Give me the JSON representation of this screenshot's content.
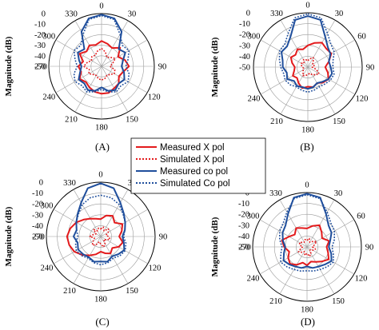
{
  "chart_data": [
    {
      "type": "polar",
      "panel_label": "(A)",
      "ylabel": "Magnitude (dB)",
      "r_ticks": [
        "0",
        "-10",
        "-20",
        "-30",
        "-40",
        "-50"
      ],
      "r_range_db": [
        -50,
        0
      ],
      "angle_ticks": [
        "0",
        "30",
        "90",
        "120",
        "150",
        "180",
        "210",
        "240",
        "270",
        "300",
        "330"
      ],
      "angle_tick_values": [
        0,
        30,
        90,
        120,
        150,
        180,
        210,
        240,
        270,
        300,
        330
      ],
      "grid": true,
      "series": [
        {
          "name": "Measured X pol",
          "color": "#e31a1c",
          "style": "solid",
          "angles": [
            0,
            15,
            30,
            45,
            60,
            75,
            90,
            105,
            120,
            135,
            150,
            165,
            180,
            195,
            210,
            225,
            240,
            255,
            270,
            285,
            300,
            315,
            330,
            345
          ],
          "values": [
            -26,
            -28,
            -30,
            -25,
            -32,
            -27,
            -24,
            -29,
            -31,
            -27,
            -26,
            -24,
            -24,
            -25,
            -27,
            -29,
            -26,
            -30,
            -28,
            -32,
            -26,
            -30,
            -27,
            -29
          ]
        },
        {
          "name": "Simulated X pol",
          "color": "#e31a1c",
          "style": "dotted",
          "angles": [
            0,
            15,
            30,
            45,
            60,
            75,
            90,
            105,
            120,
            135,
            150,
            165,
            180,
            195,
            210,
            225,
            240,
            255,
            270,
            285,
            300,
            315,
            330,
            345
          ],
          "values": [
            -33,
            -36,
            -40,
            -38,
            -35,
            -39,
            -42,
            -37,
            -36,
            -39,
            -40,
            -38,
            -37,
            -38,
            -40,
            -39,
            -36,
            -38,
            -33,
            -36,
            -39,
            -37,
            -38,
            -35
          ]
        },
        {
          "name": "Measured co pol",
          "color": "#1f4e9c",
          "style": "solid",
          "angles": [
            0,
            15,
            30,
            45,
            60,
            75,
            90,
            105,
            120,
            135,
            150,
            165,
            180,
            195,
            210,
            225,
            240,
            255,
            270,
            285,
            300,
            315,
            330,
            345
          ],
          "values": [
            -1,
            -3,
            -12,
            -27,
            -24,
            -29,
            -31,
            -28,
            -25,
            -27,
            -24,
            -26,
            -30,
            -26,
            -24,
            -27,
            -25,
            -29,
            -31,
            -28,
            -24,
            -27,
            -12,
            -3
          ]
        },
        {
          "name": "Simulated Co pol",
          "color": "#1f4e9c",
          "style": "dotted",
          "angles": [
            0,
            15,
            30,
            45,
            60,
            75,
            90,
            105,
            120,
            135,
            150,
            165,
            180,
            195,
            210,
            225,
            240,
            255,
            270,
            285,
            300,
            315,
            330,
            345
          ],
          "values": [
            -2,
            -4,
            -15,
            -22,
            -20,
            -24,
            -27,
            -23,
            -21,
            -24,
            -22,
            -25,
            -28,
            -25,
            -22,
            -24,
            -21,
            -23,
            -27,
            -24,
            -20,
            -22,
            -15,
            -4
          ]
        }
      ]
    },
    {
      "type": "polar",
      "panel_label": "(B)",
      "ylabel": "Magnitude (dB)",
      "r_ticks": [
        "0",
        "-10",
        "-20",
        "-30",
        "-40",
        "-50"
      ],
      "r_range_db": [
        -50,
        0
      ],
      "angle_ticks": [
        "0",
        "30",
        "60",
        "90",
        "120",
        "150",
        "180",
        "210",
        "240",
        "300",
        "330"
      ],
      "angle_tick_values": [
        0,
        30,
        60,
        90,
        120,
        150,
        180,
        210,
        240,
        300,
        330
      ],
      "grid": true,
      "series": [
        {
          "name": "Measured X pol",
          "color": "#e31a1c",
          "style": "solid",
          "angles": [
            0,
            15,
            30,
            45,
            60,
            75,
            90,
            105,
            120,
            135,
            150,
            165,
            180,
            195,
            210,
            225,
            240,
            255,
            270,
            285,
            300,
            315,
            330,
            345
          ],
          "values": [
            -30,
            -27,
            -24,
            -26,
            -25,
            -30,
            -34,
            -31,
            -28,
            -30,
            -33,
            -31,
            -32,
            -30,
            -33,
            -36,
            -34,
            -37,
            -38,
            -35,
            -32,
            -34,
            -31,
            -33
          ]
        },
        {
          "name": "Simulated X pol",
          "color": "#e31a1c",
          "style": "dotted",
          "angles": [
            0,
            15,
            30,
            45,
            60,
            75,
            90,
            105,
            120,
            135,
            150,
            165,
            180,
            195,
            210,
            225,
            240,
            255,
            270,
            285,
            300,
            315,
            330,
            345
          ],
          "values": [
            -44,
            -42,
            -40,
            -43,
            -45,
            -44,
            -46,
            -42,
            -38,
            -40,
            -42,
            -44,
            -43,
            -42,
            -41,
            -44,
            -45,
            -46,
            -45,
            -44,
            -43,
            -45,
            -42,
            -43
          ]
        },
        {
          "name": "Measured co pol",
          "color": "#1f4e9c",
          "style": "solid",
          "angles": [
            0,
            15,
            30,
            45,
            60,
            75,
            90,
            105,
            120,
            135,
            150,
            165,
            180,
            195,
            210,
            225,
            240,
            255,
            270,
            285,
            300,
            315,
            330,
            345
          ],
          "values": [
            -3,
            -5,
            -18,
            -24,
            -26,
            -30,
            -29,
            -27,
            -28,
            -31,
            -33,
            -31,
            -30,
            -31,
            -30,
            -32,
            -28,
            -30,
            -27,
            -26,
            -22,
            -23,
            -18,
            -5
          ]
        },
        {
          "name": "Simulated Co pol",
          "color": "#1f4e9c",
          "style": "dotted",
          "angles": [
            0,
            15,
            30,
            45,
            60,
            75,
            90,
            105,
            120,
            135,
            150,
            165,
            180,
            195,
            210,
            225,
            240,
            255,
            270,
            285,
            300,
            315,
            330,
            345
          ],
          "values": [
            -1,
            -3,
            -14,
            -20,
            -22,
            -26,
            -27,
            -25,
            -26,
            -28,
            -29,
            -28,
            -27,
            -28,
            -29,
            -27,
            -26,
            -27,
            -25,
            -23,
            -20,
            -20,
            -14,
            -3
          ]
        }
      ]
    },
    {
      "type": "polar",
      "panel_label": "(C)",
      "ylabel": "Magnitude (dB)",
      "r_ticks": [
        "0",
        "-10",
        "-20",
        "-30",
        "-40",
        "-50"
      ],
      "r_range_db": [
        -50,
        0
      ],
      "angle_ticks": [
        "0",
        "30",
        "90",
        "120",
        "150",
        "180",
        "210",
        "240",
        "270",
        "300",
        "330"
      ],
      "angle_tick_values": [
        0,
        30,
        90,
        120,
        150,
        180,
        210,
        240,
        270,
        300,
        330
      ],
      "grid": true,
      "series": [
        {
          "name": "Measured X pol",
          "color": "#e31a1c",
          "style": "solid",
          "angles": [
            0,
            15,
            30,
            45,
            60,
            75,
            90,
            105,
            120,
            135,
            150,
            165,
            180,
            195,
            210,
            225,
            240,
            255,
            270,
            285,
            300,
            315,
            330,
            345
          ],
          "values": [
            -34,
            -30,
            -28,
            -32,
            -27,
            -30,
            -33,
            -29,
            -31,
            -35,
            -32,
            -34,
            -36,
            -33,
            -30,
            -26,
            -22,
            -20,
            -19,
            -21,
            -24,
            -28,
            -31,
            -33
          ]
        },
        {
          "name": "Simulated X pol",
          "color": "#e31a1c",
          "style": "dotted",
          "angles": [
            0,
            15,
            30,
            45,
            60,
            75,
            90,
            105,
            120,
            135,
            150,
            165,
            180,
            195,
            210,
            225,
            240,
            255,
            270,
            285,
            300,
            315,
            330,
            345
          ],
          "values": [
            -43,
            -41,
            -44,
            -40,
            -42,
            -45,
            -43,
            -41,
            -44,
            -46,
            -42,
            -40,
            -43,
            -45,
            -41,
            -39,
            -42,
            -44,
            -40,
            -43,
            -45,
            -41,
            -44,
            -42
          ]
        },
        {
          "name": "Measured co pol",
          "color": "#1f4e9c",
          "style": "solid",
          "angles": [
            0,
            15,
            30,
            45,
            60,
            75,
            90,
            105,
            120,
            135,
            150,
            165,
            180,
            195,
            210,
            225,
            240,
            255,
            270,
            285,
            300,
            315,
            330,
            345
          ],
          "values": [
            -1,
            -4,
            -14,
            -20,
            -24,
            -27,
            -30,
            -28,
            -25,
            -27,
            -29,
            -26,
            -27,
            -26,
            -28,
            -27,
            -26,
            -28,
            -25,
            -27,
            -24,
            -20,
            -14,
            -4
          ]
        },
        {
          "name": "Simulated Co pol",
          "color": "#1f4e9c",
          "style": "dotted",
          "angles": [
            0,
            15,
            30,
            45,
            60,
            75,
            90,
            105,
            120,
            135,
            150,
            165,
            180,
            195,
            210,
            225,
            240,
            255,
            270,
            285,
            300,
            315,
            330,
            345
          ],
          "values": [
            -12,
            -13,
            -16,
            -21,
            -24,
            -27,
            -29,
            -26,
            -24,
            -25,
            -27,
            -25,
            -24,
            -25,
            -27,
            -25,
            -24,
            -26,
            -29,
            -27,
            -24,
            -21,
            -16,
            -13
          ]
        }
      ]
    },
    {
      "type": "polar",
      "panel_label": "(D)",
      "ylabel": "Magnitude (dB)",
      "r_ticks": [
        "0",
        "-10",
        "-20",
        "-30",
        "-40",
        "-50"
      ],
      "r_range_db": [
        -50,
        0
      ],
      "angle_ticks": [
        "0",
        "30",
        "60",
        "90",
        "120",
        "150",
        "180",
        "210",
        "240",
        "270",
        "300",
        "330"
      ],
      "angle_tick_values": [
        0,
        30,
        60,
        90,
        120,
        150,
        180,
        210,
        240,
        270,
        300,
        330
      ],
      "grid": true,
      "series": [
        {
          "name": "Measured X pol",
          "color": "#e31a1c",
          "style": "solid",
          "angles": [
            0,
            15,
            30,
            45,
            60,
            75,
            90,
            105,
            120,
            135,
            150,
            165,
            180,
            195,
            210,
            225,
            240,
            255,
            270,
            285,
            300,
            315,
            330,
            345
          ],
          "values": [
            -33,
            -30,
            -27,
            -31,
            -34,
            -29,
            -32,
            -30,
            -27,
            -31,
            -34,
            -36,
            -33,
            -35,
            -31,
            -28,
            -30,
            -33,
            -29,
            -26,
            -31,
            -34,
            -30,
            -32
          ]
        },
        {
          "name": "Simulated X pol",
          "color": "#e31a1c",
          "style": "dotted",
          "angles": [
            0,
            15,
            30,
            45,
            60,
            75,
            90,
            105,
            120,
            135,
            150,
            165,
            180,
            195,
            210,
            225,
            240,
            255,
            270,
            285,
            300,
            315,
            330,
            345
          ],
          "values": [
            -44,
            -42,
            -45,
            -43,
            -40,
            -43,
            -45,
            -42,
            -44,
            -46,
            -43,
            -41,
            -44,
            -42,
            -45,
            -43,
            -41,
            -44,
            -46,
            -43,
            -42,
            -44,
            -45,
            -43
          ]
        },
        {
          "name": "Measured co pol",
          "color": "#1f4e9c",
          "style": "solid",
          "angles": [
            0,
            15,
            30,
            45,
            60,
            75,
            90,
            105,
            120,
            135,
            150,
            165,
            180,
            195,
            210,
            225,
            240,
            255,
            270,
            285,
            300,
            315,
            330,
            345
          ],
          "values": [
            -1,
            -3,
            -15,
            -22,
            -24,
            -28,
            -30,
            -27,
            -24,
            -27,
            -29,
            -30,
            -32,
            -30,
            -29,
            -27,
            -25,
            -28,
            -30,
            -27,
            -24,
            -22,
            -15,
            -3
          ]
        },
        {
          "name": "Simulated Co pol",
          "color": "#1f4e9c",
          "style": "dotted",
          "angles": [
            0,
            15,
            30,
            45,
            60,
            75,
            90,
            105,
            120,
            135,
            150,
            165,
            180,
            195,
            210,
            225,
            240,
            255,
            270,
            285,
            300,
            315,
            330,
            345
          ],
          "values": [
            -2,
            -4,
            -13,
            -19,
            -21,
            -24,
            -27,
            -25,
            -22,
            -24,
            -26,
            -27,
            -28,
            -27,
            -26,
            -24,
            -22,
            -25,
            -27,
            -24,
            -21,
            -19,
            -13,
            -4
          ]
        }
      ]
    }
  ],
  "legend": {
    "entries": [
      {
        "label": "Measured X pol",
        "color": "#e31a1c",
        "style": "solid"
      },
      {
        "label": "Simulated X pol",
        "color": "#e31a1c",
        "style": "dotted"
      },
      {
        "label": "Measured co pol",
        "color": "#1f4e9c",
        "style": "solid"
      },
      {
        "label": "Simulated Co pol",
        "color": "#1f4e9c",
        "style": "dotted"
      }
    ]
  }
}
